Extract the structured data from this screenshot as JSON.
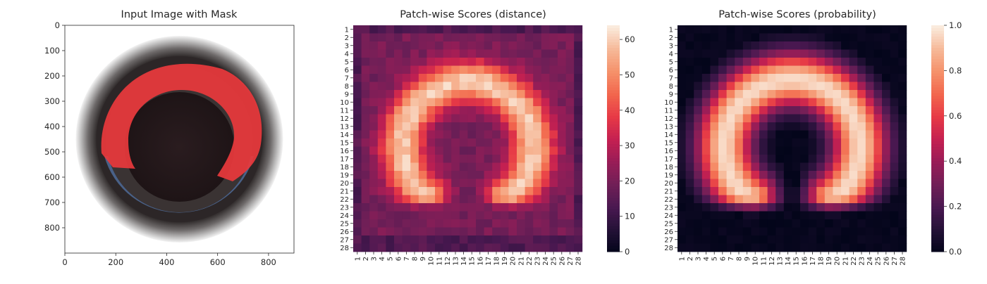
{
  "chart_data": [
    {
      "type": "image",
      "title": "Input Image with Mask",
      "xticks": [
        0,
        200,
        400,
        600,
        800
      ],
      "yticks": [
        0,
        100,
        200,
        300,
        400,
        500,
        600,
        700,
        800
      ],
      "xlim": [
        0,
        900
      ],
      "ylim": [
        900,
        0
      ],
      "image_size": [
        900,
        900
      ],
      "colors": {
        "mask": "#e8393c",
        "lid_outer": "#3a3432",
        "lid_inner": "#231719",
        "blue_rim": "#4f6c9a"
      }
    },
    {
      "type": "heatmap",
      "title": "Patch-wise Scores (distance)",
      "rows": 28,
      "cols": 28,
      "xticklabels": [
        "1",
        "2",
        "3",
        "4",
        "5",
        "6",
        "7",
        "8",
        "9",
        "10",
        "11",
        "12",
        "13",
        "14",
        "15",
        "16",
        "17",
        "18",
        "19",
        "20",
        "21",
        "22",
        "23",
        "24",
        "25",
        "26",
        "27",
        "28"
      ],
      "yticklabels": [
        "1",
        "2",
        "3",
        "4",
        "5",
        "6",
        "7",
        "8",
        "9",
        "10",
        "11",
        "12",
        "13",
        "14",
        "15",
        "16",
        "17",
        "18",
        "19",
        "20",
        "21",
        "22",
        "23",
        "24",
        "25",
        "26",
        "27",
        "28"
      ],
      "colorbar": {
        "min": 0,
        "max": 64,
        "ticks": [
          0,
          10,
          20,
          30,
          40,
          50,
          60
        ]
      },
      "colormap": "rocket",
      "arc": {
        "center_row": 15.5,
        "center_col": 14.5,
        "radius": 8.0,
        "peak_value": 60,
        "base_value": 20,
        "open_side": "bottom"
      },
      "grid": false
    },
    {
      "type": "heatmap",
      "title": "Patch-wise Scores (probability)",
      "rows": 28,
      "cols": 28,
      "xticklabels": [
        "1",
        "2",
        "3",
        "4",
        "5",
        "6",
        "7",
        "8",
        "9",
        "10",
        "11",
        "12",
        "13",
        "14",
        "15",
        "16",
        "17",
        "18",
        "19",
        "20",
        "21",
        "22",
        "23",
        "24",
        "25",
        "26",
        "27",
        "28"
      ],
      "yticklabels": [
        "1",
        "2",
        "3",
        "4",
        "5",
        "6",
        "7",
        "8",
        "9",
        "10",
        "11",
        "12",
        "13",
        "14",
        "15",
        "16",
        "17",
        "18",
        "19",
        "20",
        "21",
        "22",
        "23",
        "24",
        "25",
        "26",
        "27",
        "28"
      ],
      "colorbar": {
        "min": 0.0,
        "max": 1.0,
        "ticks": [
          0.0,
          0.2,
          0.4,
          0.6,
          0.8,
          1.0
        ],
        "ticklabels": [
          "0.0",
          "0.2",
          "0.4",
          "0.6",
          "0.8",
          "1.0"
        ]
      },
      "colormap": "rocket",
      "arc": {
        "center_row": 15.5,
        "center_col": 14.5,
        "radius": 8.3,
        "peak_value": 0.97,
        "base_value": 0.0,
        "open_side": "bottom"
      },
      "grid": false
    }
  ]
}
